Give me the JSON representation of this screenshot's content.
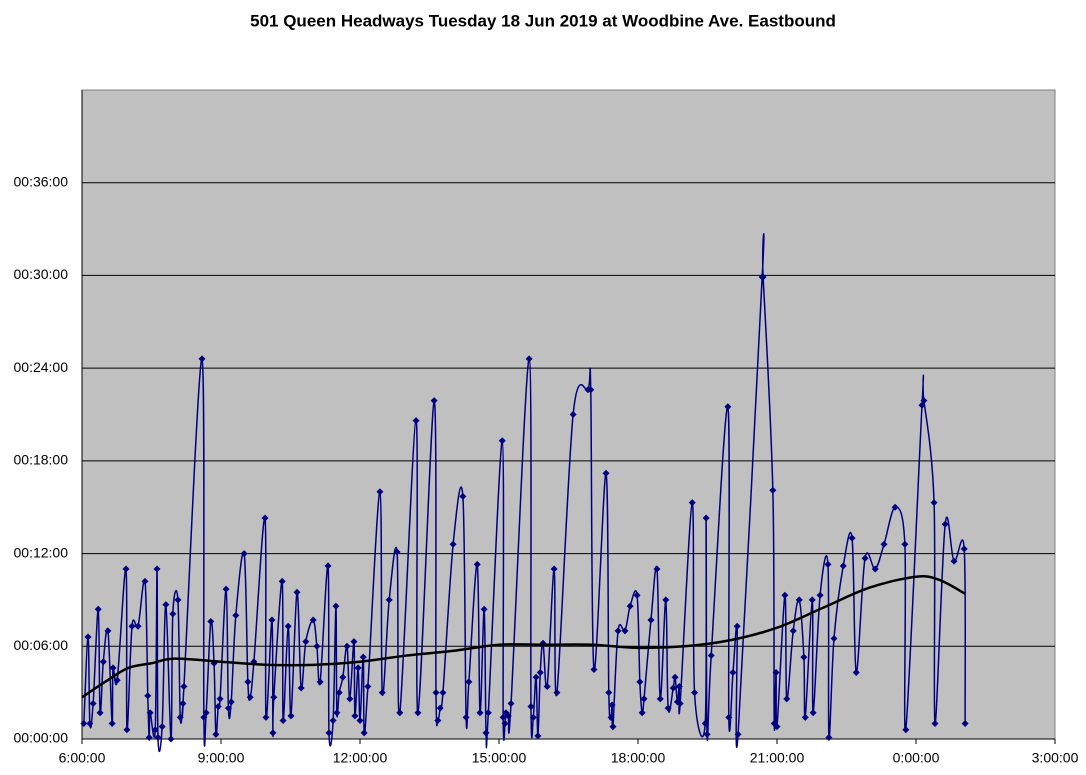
{
  "chart_data": {
    "type": "line",
    "title": "501 Queen Headways Tuesday 18 Jun 2019 at Woodbine Ave. Eastbound",
    "xlim": [
      6,
      27
    ],
    "xticks": [
      {
        "value": 6,
        "label": "6:00:00"
      },
      {
        "value": 9,
        "label": "9:00:00"
      },
      {
        "value": 12,
        "label": "12:00:00"
      },
      {
        "value": 15,
        "label": "15:00:00"
      },
      {
        "value": 18,
        "label": "18:00:00"
      },
      {
        "value": 21,
        "label": "21:00:00"
      },
      {
        "value": 24,
        "label": "0:00:00"
      },
      {
        "value": 27,
        "label": "3:00:00"
      }
    ],
    "ylim": [
      0,
      42
    ],
    "yticks": [
      {
        "value": 0,
        "label": "00:00:00"
      },
      {
        "value": 6,
        "label": "00:06:00"
      },
      {
        "value": 12,
        "label": "00:12:00"
      },
      {
        "value": 18,
        "label": "00:18:00"
      },
      {
        "value": 24,
        "label": "00:24:00"
      },
      {
        "value": 30,
        "label": "00:30:00"
      },
      {
        "value": 36,
        "label": "00:36:00"
      }
    ],
    "grid": true,
    "plot_background": "#c0c0c0",
    "series": [
      {
        "color": "#000080",
        "markers": true,
        "smooth": true,
        "x": [
          6.04,
          6.13,
          6.17,
          6.24,
          6.35,
          6.39,
          6.46,
          6.56,
          6.65,
          6.67,
          6.76,
          6.95,
          6.97,
          7.08,
          7.21,
          7.36,
          7.42,
          7.45,
          7.47,
          7.58,
          7.62,
          7.64,
          7.73,
          7.81,
          7.92,
          7.96,
          8.07,
          8.12,
          8.18,
          8.2,
          8.59,
          8.63,
          8.68,
          8.78,
          8.85,
          8.89,
          8.94,
          8.98,
          9.11,
          9.16,
          9.22,
          9.32,
          9.5,
          9.58,
          9.63,
          9.71,
          9.95,
          9.97,
          10.1,
          10.12,
          10.14,
          10.32,
          10.34,
          10.45,
          10.51,
          10.64,
          10.73,
          10.83,
          10.99,
          11.07,
          11.14,
          11.31,
          11.33,
          11.42,
          11.48,
          11.5,
          11.55,
          11.63,
          11.72,
          11.78,
          11.87,
          11.89,
          11.96,
          12.0,
          12.07,
          12.09,
          12.17,
          12.43,
          12.48,
          12.63,
          12.8,
          12.86,
          13.21,
          13.25,
          13.6,
          13.64,
          13.68,
          13.73,
          13.79,
          14.01,
          14.22,
          14.29,
          14.35,
          14.53,
          14.59,
          14.68,
          14.72,
          14.77,
          15.07,
          15.09,
          15.13,
          15.15,
          15.2,
          15.26,
          15.65,
          15.69,
          15.74,
          15.8,
          15.84,
          15.89,
          15.95,
          16.04,
          16.19,
          16.25,
          16.6,
          16.92,
          16.98,
          17.05,
          17.31,
          17.37,
          17.42,
          17.44,
          17.46,
          17.57,
          17.72,
          17.83,
          17.98,
          18.04,
          18.09,
          18.13,
          18.28,
          18.41,
          18.48,
          18.6,
          18.65,
          18.76,
          18.8,
          18.85,
          18.89,
          18.91,
          19.17,
          19.22,
          19.45,
          19.47,
          19.49,
          19.58,
          19.94,
          19.96,
          20.05,
          20.14,
          20.16,
          20.68,
          20.7,
          20.91,
          20.94,
          20.98,
          21.0,
          21.17,
          21.21,
          21.35,
          21.48,
          21.58,
          21.61,
          21.76,
          21.78,
          21.93,
          22.1,
          22.12,
          22.23,
          22.43,
          22.62,
          22.71,
          22.9,
          23.12,
          23.31,
          23.55,
          23.76,
          23.78,
          24.13,
          24.17,
          24.39,
          24.41,
          24.63,
          24.82,
          25.04,
          25.06
        ],
        "values": [
          1.0,
          6.6,
          1.0,
          2.3,
          8.4,
          1.7,
          5.0,
          7.0,
          1.0,
          4.6,
          3.8,
          11.0,
          0.6,
          7.3,
          7.3,
          10.2,
          2.8,
          0.1,
          1.7,
          0.6,
          11.0,
          0.1,
          0.8,
          8.7,
          0.0,
          8.1,
          9.0,
          1.4,
          2.3,
          3.4,
          24.6,
          1.4,
          1.7,
          7.6,
          4.9,
          0.3,
          2.1,
          2.6,
          9.7,
          2.0,
          2.4,
          8.0,
          12.0,
          3.7,
          2.7,
          5.0,
          14.3,
          1.4,
          7.7,
          0.4,
          2.7,
          10.2,
          1.2,
          7.3,
          1.5,
          9.5,
          3.3,
          6.3,
          7.7,
          6.0,
          3.7,
          11.2,
          0.4,
          1.2,
          8.6,
          1.7,
          3.0,
          4.0,
          6.0,
          2.6,
          6.3,
          1.5,
          4.6,
          1.2,
          5.3,
          0.4,
          3.4,
          16.0,
          3.0,
          9.0,
          12.1,
          1.7,
          20.6,
          1.7,
          21.9,
          3.0,
          1.2,
          2.0,
          3.0,
          12.6,
          15.7,
          1.4,
          3.7,
          11.3,
          1.7,
          8.4,
          0.4,
          1.7,
          19.3,
          1.4,
          1.0,
          1.7,
          1.5,
          2.3,
          24.6,
          2.1,
          1.4,
          4.0,
          0.2,
          4.3,
          6.2,
          3.4,
          11.0,
          3.0,
          21.0,
          22.6,
          22.6,
          4.5,
          17.2,
          3.0,
          1.4,
          2.2,
          0.8,
          7.0,
          7.0,
          8.6,
          9.3,
          3.7,
          1.7,
          2.6,
          7.7,
          11.0,
          2.6,
          9.0,
          2.0,
          3.3,
          4.0,
          2.4,
          3.4,
          2.3,
          15.3,
          3.0,
          1.0,
          14.3,
          0.3,
          5.4,
          21.5,
          1.4,
          4.3,
          7.3,
          0.3,
          29.9,
          29.9,
          16.1,
          1.0,
          4.3,
          0.8,
          9.3,
          2.6,
          7.0,
          9.0,
          5.3,
          1.4,
          9.0,
          1.7,
          9.3,
          11.3,
          0.1,
          6.5,
          11.2,
          13.0,
          4.3,
          11.7,
          11.0,
          12.6,
          15.0,
          12.6,
          0.6,
          21.6,
          21.9,
          15.3,
          1.0,
          13.9,
          11.5,
          12.3,
          1.0
        ]
      },
      {
        "color": "#000000",
        "markers": false,
        "smooth": true,
        "x": [
          6.0,
          6.5,
          7.0,
          7.5,
          8.0,
          9.0,
          10.0,
          11.0,
          12.0,
          13.0,
          14.0,
          15.0,
          16.0,
          17.0,
          18.0,
          19.0,
          20.0,
          21.0,
          22.0,
          23.0,
          24.0,
          24.5,
          25.06
        ],
        "values": [
          2.7,
          3.7,
          4.6,
          4.9,
          5.2,
          5.0,
          4.8,
          4.8,
          5.0,
          5.4,
          5.7,
          6.1,
          6.1,
          6.1,
          5.9,
          6.0,
          6.4,
          7.2,
          8.5,
          9.8,
          10.5,
          10.3,
          9.4
        ]
      }
    ]
  }
}
